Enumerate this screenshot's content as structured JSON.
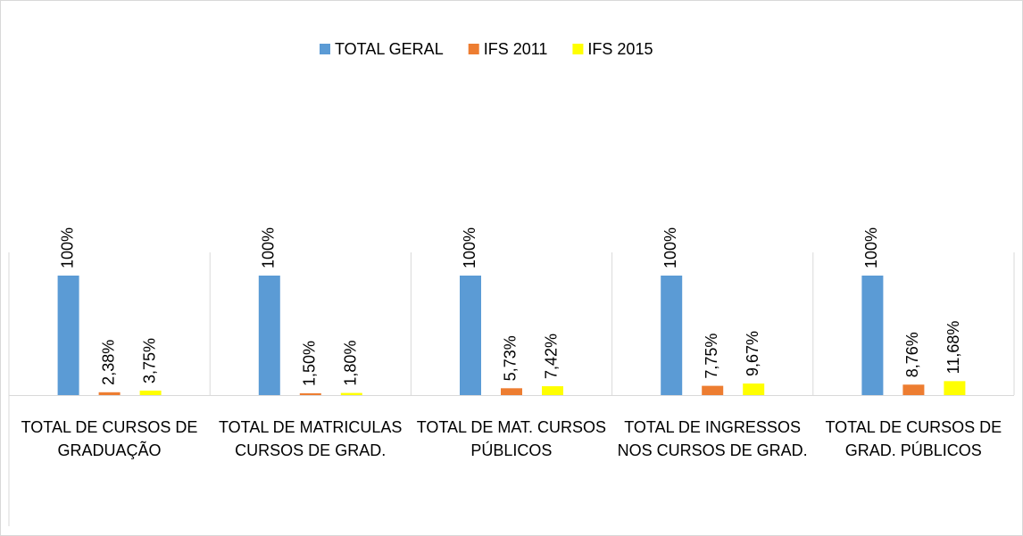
{
  "chart_data": {
    "type": "bar",
    "categories": [
      "TOTAL DE CURSOS DE GRADUAÇÃO",
      "TOTAL DE MATRICULAS CURSOS DE GRAD.",
      "TOTAL DE MAT. CURSOS PÚBLICOS",
      "TOTAL DE INGRESSOS NOS CURSOS DE GRAD.",
      "TOTAL DE CURSOS DE GRAD. PÚBLICOS"
    ],
    "series": [
      {
        "name": "TOTAL GERAL",
        "color": "#5b9bd5",
        "values": [
          100,
          100,
          100,
          100,
          100
        ],
        "value_labels": [
          "100%",
          "100%",
          "100%",
          "100%",
          "100%"
        ]
      },
      {
        "name": "IFS 2011",
        "color": "#ed7d31",
        "values": [
          2.38,
          1.5,
          5.73,
          7.75,
          8.76
        ],
        "value_labels": [
          "2,38%",
          "1,50%",
          "5,73%",
          "7,75%",
          "8,76%"
        ]
      },
      {
        "name": "IFS 2015",
        "color": "#ffff00",
        "values": [
          3.75,
          1.8,
          7.42,
          9.67,
          11.68
        ],
        "value_labels": [
          "3,75%",
          "1,80%",
          "7,42%",
          "9,67%",
          "11,68%"
        ]
      }
    ],
    "ylim": [
      0,
      100
    ],
    "legend": "top"
  }
}
